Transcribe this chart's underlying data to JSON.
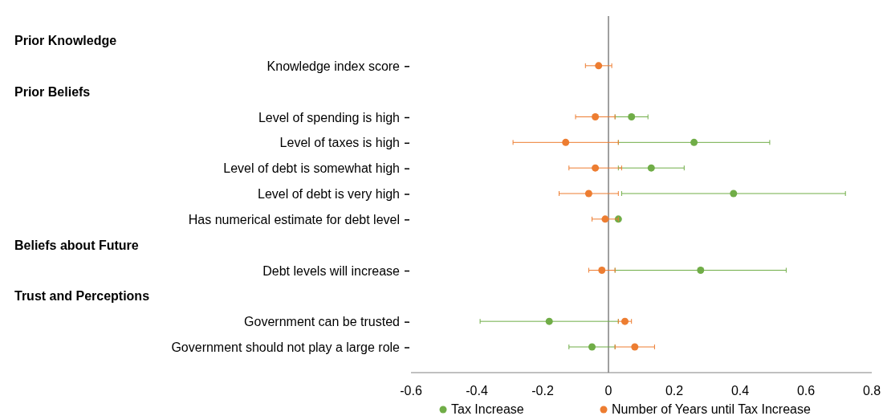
{
  "chart_data": {
    "type": "scatter",
    "orientation": "horizontal",
    "categories": [
      null,
      "Knowledge index score",
      null,
      "Level of spending is high",
      "Level of taxes is high",
      "Level of debt is somewhat high",
      "Level of debt is very high",
      "Has numerical estimate for debt level",
      null,
      "Debt levels will increase",
      null,
      "Government can be trusted",
      "Government should not play a large role"
    ],
    "annotations": [
      "Prior Knowledge",
      "Prior Beliefs",
      "Beliefs about Future",
      "Trust and Perceptions"
    ],
    "series": [
      {
        "name": "Tax Increase",
        "color": "#70ad47",
        "values": [
          null,
          null,
          null,
          0.07,
          0.26,
          0.13,
          0.38,
          0.03,
          null,
          0.28,
          null,
          -0.18,
          -0.05
        ],
        "errors": [
          null,
          null,
          null,
          [
            0.02,
            0.12
          ],
          [
            0.03,
            0.49
          ],
          [
            0.03,
            0.23
          ],
          [
            0.04,
            0.72
          ],
          null,
          null,
          [
            0.02,
            0.54
          ],
          null,
          [
            -0.39,
            0.03
          ],
          [
            -0.12,
            0.02
          ]
        ]
      },
      {
        "name": "Number of Years until Tax Increase",
        "color": "#ed7d31",
        "values": [
          null,
          -0.03,
          null,
          -0.04,
          -0.13,
          -0.04,
          -0.06,
          -0.01,
          null,
          -0.02,
          null,
          0.05,
          0.08
        ],
        "errors": [
          null,
          [
            -0.07,
            0.01
          ],
          null,
          [
            -0.1,
            0.02
          ],
          [
            -0.29,
            0.03
          ],
          [
            -0.12,
            0.04
          ],
          [
            -0.15,
            0.03
          ],
          [
            -0.05,
            0.03
          ],
          null,
          [
            -0.06,
            0.02
          ],
          null,
          [
            0.03,
            0.07
          ],
          [
            0.02,
            0.14
          ]
        ]
      }
    ],
    "xlim": [
      -0.6,
      0.8
    ],
    "xticks": [
      -0.6,
      -0.4,
      -0.2,
      0,
      0.2,
      0.4,
      0.6,
      0.8
    ],
    "ref_lines": [
      {
        "axis": "x",
        "value": 0,
        "color": "#404040"
      }
    ],
    "grid": false,
    "legend": "bottom",
    "marker": "circle"
  }
}
